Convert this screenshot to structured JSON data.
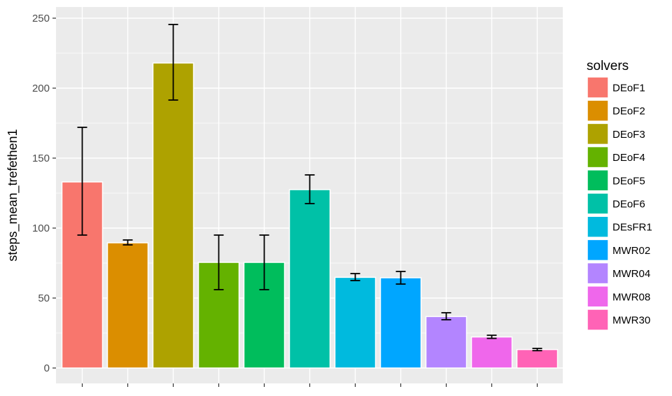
{
  "chart_data": {
    "type": "bar",
    "title": "",
    "xlabel": "",
    "ylabel": "steps_mean_trefethen1",
    "ylim": [
      0,
      255
    ],
    "y_ticks": [
      0,
      50,
      100,
      150,
      200,
      250
    ],
    "grid": true,
    "legend_position": "right",
    "legend_title": "solvers",
    "categories": [
      "DEoF1",
      "DEoF2",
      "DEoF3",
      "DEoF4",
      "DEoF5",
      "DEoF6",
      "DEsFR1",
      "MWR02",
      "MWR04",
      "MWR08",
      "MWR30"
    ],
    "values": [
      133,
      89.5,
      218,
      75.5,
      75.5,
      127.5,
      64.8,
      64.5,
      36.8,
      22.2,
      13.2
    ],
    "error_low": [
      95,
      88,
      191.5,
      56,
      56,
      117.5,
      62.5,
      60,
      34.5,
      21.2,
      12.4
    ],
    "error_high": [
      172,
      91.5,
      245.5,
      95,
      95,
      138,
      67.5,
      69,
      39.5,
      23.4,
      14
    ],
    "colors": [
      "#F8766D",
      "#DB8E00",
      "#AEA200",
      "#64B200",
      "#00BD5C",
      "#00C1A7",
      "#00BADE",
      "#00A6FF",
      "#B385FF",
      "#EF67EB",
      "#FF63B6"
    ]
  }
}
